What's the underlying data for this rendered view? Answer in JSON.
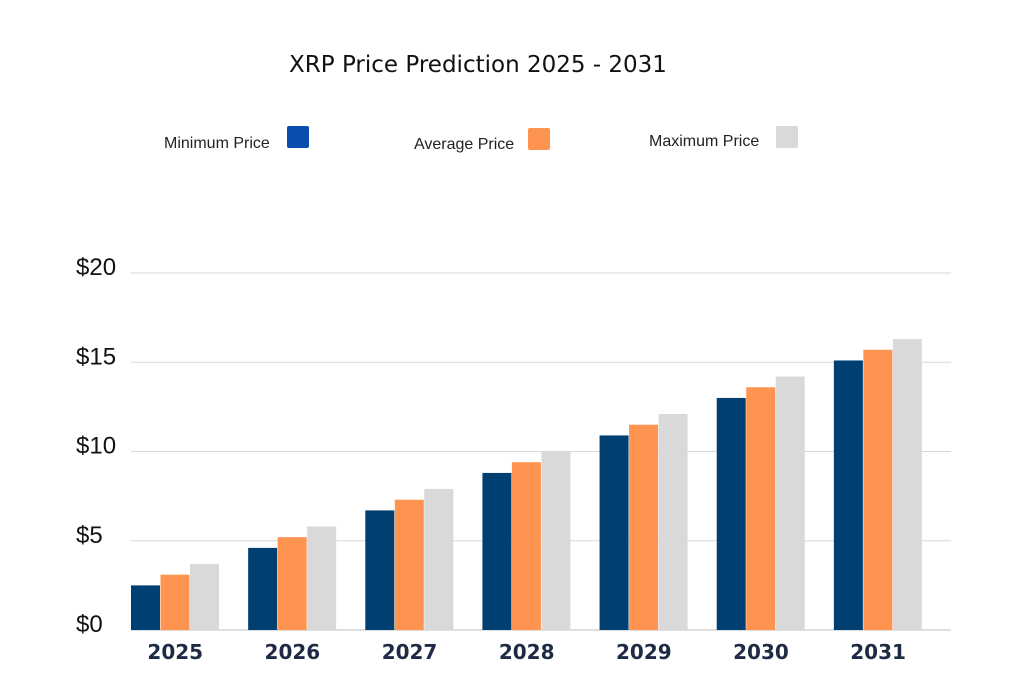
{
  "chart_data": {
    "type": "bar",
    "title": "XRP Price Prediction 2025 - 2031",
    "categories": [
      "2025",
      "2026",
      "2027",
      "2028",
      "2029",
      "2030",
      "2031"
    ],
    "series": [
      {
        "name": "Minimum Price",
        "color": "#003f72",
        "legend_color": "#0a4fb0",
        "values": [
          2.5,
          4.6,
          6.7,
          8.8,
          10.9,
          13.0,
          15.1
        ]
      },
      {
        "name": "Average Price",
        "color": "#ff9450",
        "legend_color": "#ff9450",
        "values": [
          3.1,
          5.2,
          7.3,
          9.4,
          11.5,
          13.6,
          15.7
        ]
      },
      {
        "name": "Maximum Price",
        "color": "#d9d9d9",
        "legend_color": "#d9d9d9",
        "values": [
          3.7,
          5.8,
          7.9,
          10.0,
          12.1,
          14.2,
          16.3
        ]
      }
    ],
    "y_ticks": [
      "$0",
      "$5",
      "$10",
      "$15",
      "$20"
    ],
    "ylim": [
      0,
      20
    ],
    "grid": true,
    "legend_position": "top"
  }
}
